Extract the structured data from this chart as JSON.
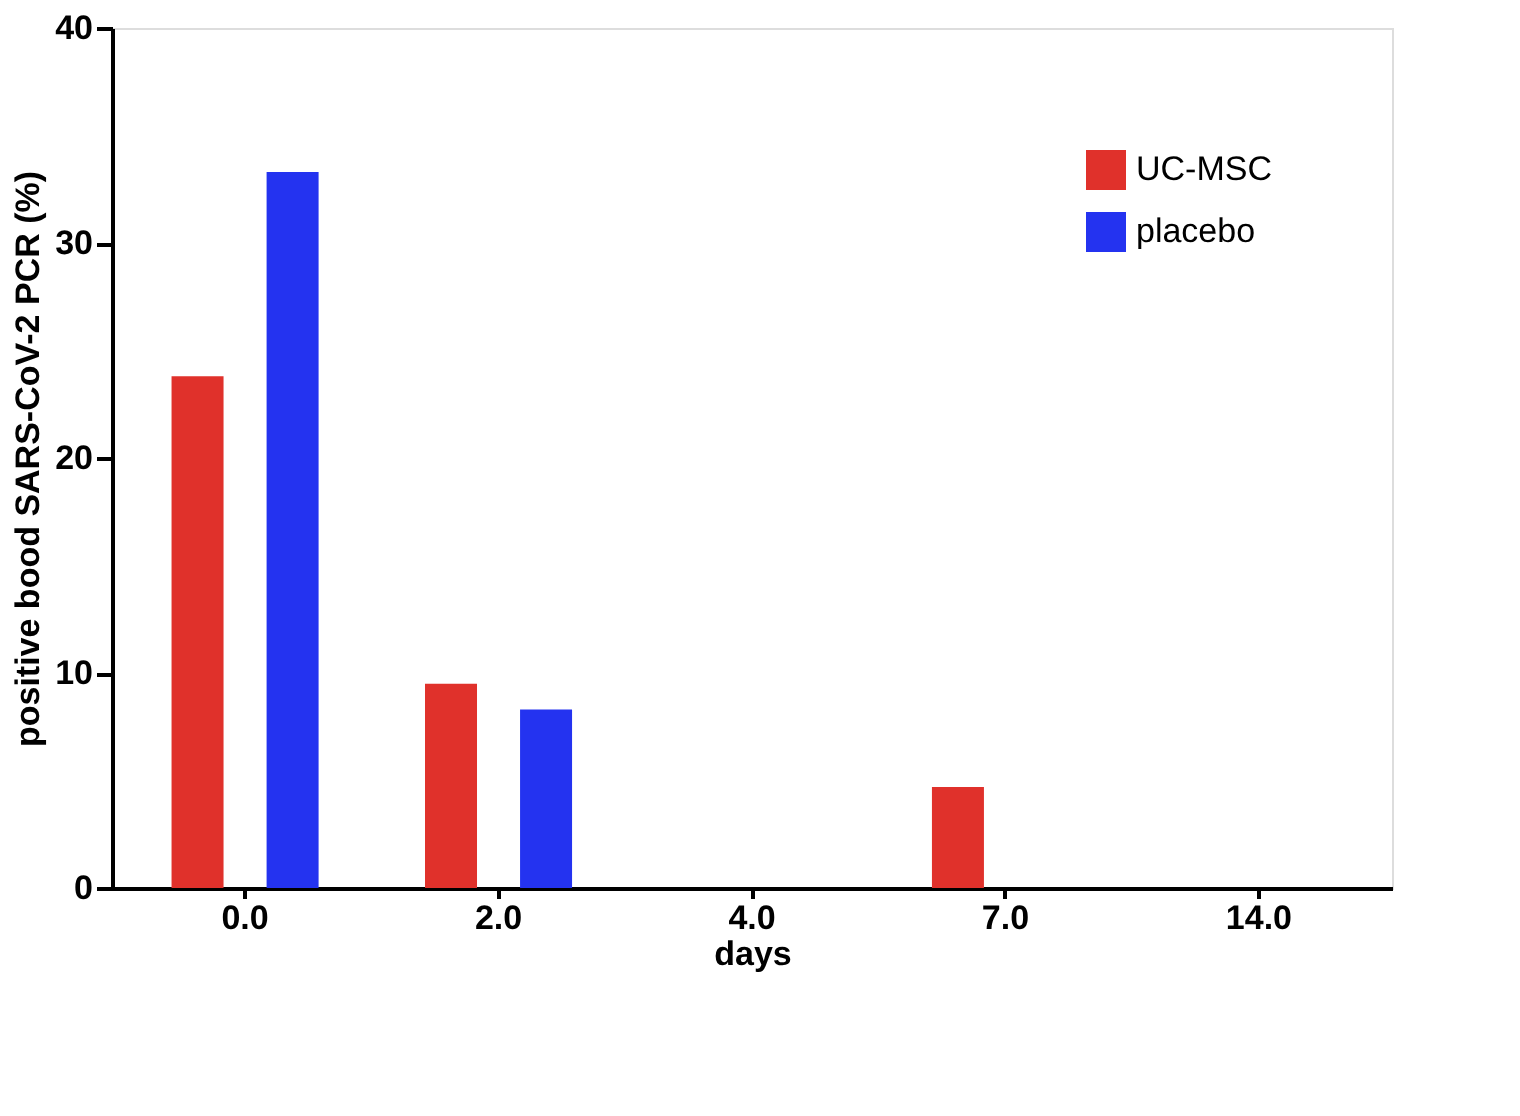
{
  "chart_data": {
    "type": "bar",
    "xlabel": "days",
    "ylabel": "positive bood SARS-CoV-2 PCR (%)",
    "categories": [
      "0.0",
      "2.0",
      "4.0",
      "7.0",
      "14.0"
    ],
    "series": [
      {
        "name": "UC-MSC",
        "color": "#e0312b",
        "values": [
          23.8,
          9.5,
          0,
          4.7,
          0
        ]
      },
      {
        "name": "placebo",
        "color": "#2433f0",
        "values": [
          33.3,
          8.3,
          0,
          0,
          0
        ]
      }
    ],
    "ylim": [
      0,
      40
    ],
    "yticks": [
      0,
      10,
      20,
      30,
      40
    ],
    "grid": false,
    "legend": "top right"
  }
}
